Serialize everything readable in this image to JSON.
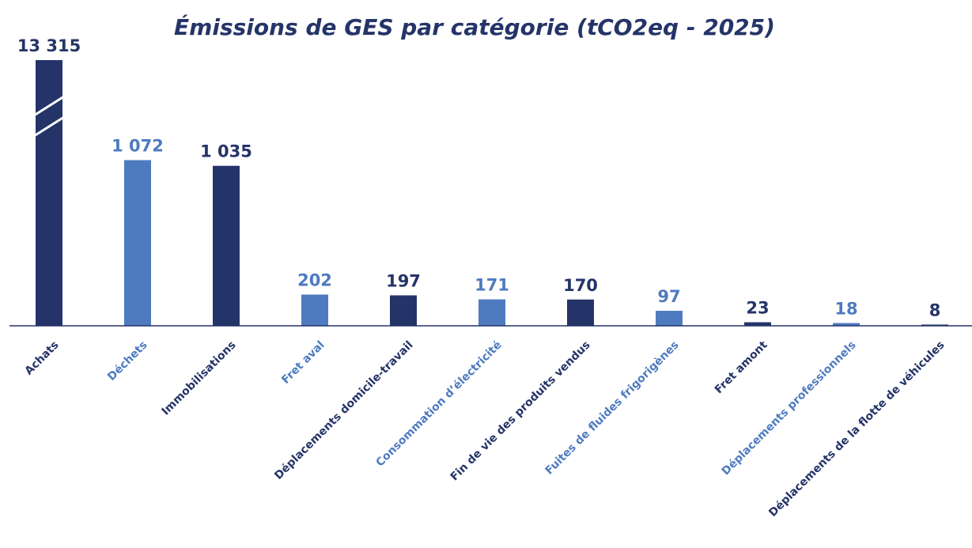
{
  "chart_data": {
    "type": "bar",
    "title": "Émissions de GES par catégorie (tCO2eq - 2025)",
    "categories": [
      "Achats",
      "Déchets",
      "Immobilisations",
      "Fret aval",
      "Déplacements domicile-travail",
      "Consommation d’électricité",
      "Fin de vie des produits vendus",
      "Fuites de fluides frigorigènes",
      "Fret amont",
      "Déplacements professionnels",
      "Déplacements de la flotte de véhicules"
    ],
    "values": [
      13315,
      1072,
      1035,
      202,
      197,
      171,
      170,
      97,
      23,
      18,
      8
    ],
    "value_labels": [
      "13 315",
      "1 072",
      "1 035",
      "202",
      "197",
      "171",
      "170",
      "97",
      "23",
      "18",
      "8"
    ],
    "colors": [
      "#253468",
      "#4e7bbf",
      "#253468",
      "#4e7bbf",
      "#253468",
      "#4e7bbf",
      "#253468",
      "#4e7bbf",
      "#253468",
      "#4e7bbf",
      "#253468"
    ],
    "ylim": [
      0,
      1100
    ],
    "broken_axis": true
  }
}
